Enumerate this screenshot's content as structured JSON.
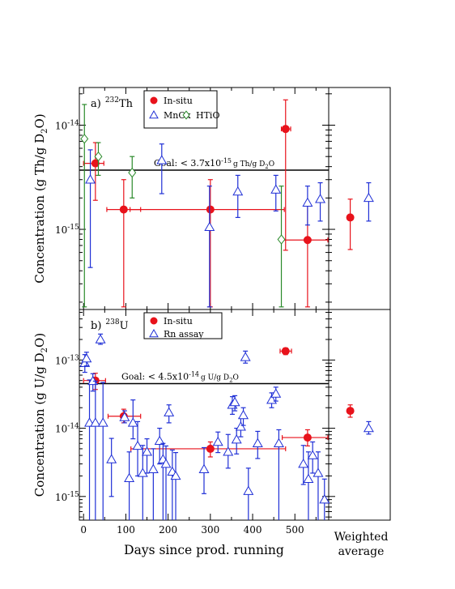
{
  "chart_data": [
    {
      "type": "scatter",
      "panel_label": "a)",
      "isotope_mass": "232",
      "isotope_symbol": "Th",
      "ylabel_parts": [
        "Concentration (g Th/g D",
        "2",
        "O)"
      ],
      "yscale": "log",
      "ylim": [
        1.7e-16,
        2.3e-14
      ],
      "xlim": [
        -10,
        580
      ],
      "ytick_labels": [
        {
          "value": 1e-14,
          "mant": "10",
          "exp": "-14"
        },
        {
          "value": 1e-15,
          "mant": "10",
          "exp": "-15"
        }
      ],
      "goal": {
        "value": 3.7e-15,
        "text_prefix": "Goal: < 3.7x10",
        "text_exp": "-15",
        "text_unit_parts": [
          "g Th/g D",
          "2",
          "O"
        ]
      },
      "legend": [
        {
          "label": "In-situ",
          "marker": "circle",
          "color": "#e8121b"
        },
        {
          "label": "MnOx",
          "marker": "triangle",
          "color": "#1f2fd6"
        },
        {
          "label": "HTiO",
          "marker": "diamond",
          "color": "#2a8a2a"
        }
      ],
      "series": [
        {
          "name": "In-situ",
          "marker": "circle",
          "color": "#e8121b",
          "points": [
            {
              "x": 28,
              "y": 4.3e-15,
              "ylo": 1.9e-15,
              "yhi": 6.8e-15,
              "xlo": 0,
              "xhi": 48
            },
            {
              "x": 95,
              "y": 1.55e-15,
              "ylo": 1.8e-16,
              "yhi": 3e-15,
              "xlo": 55,
              "xhi": 135
            },
            {
              "x": 300,
              "y": 1.55e-15,
              "ylo": 1.8e-16,
              "yhi": 3e-15,
              "xlo": 110,
              "xhi": 475
            },
            {
              "x": 478,
              "y": 9.2e-15,
              "ylo": 6.3e-16,
              "yhi": 1.75e-14,
              "xlo": 468,
              "xhi": 490
            },
            {
              "x": 530,
              "y": 7.9e-16,
              "ylo": 1.8e-16,
              "yhi": 1.75e-15,
              "xlo": 470,
              "xhi": 578
            }
          ]
        },
        {
          "name": "MnOx",
          "marker": "triangle",
          "color": "#1f2fd6",
          "points": [
            {
              "x": 16,
              "y": 3e-15,
              "ylo": 4.3e-16,
              "yhi": 5.8e-15
            },
            {
              "x": 185,
              "y": 4.6e-15,
              "ylo": 2.2e-15,
              "yhi": 6.6e-15
            },
            {
              "x": 298,
              "y": 1.05e-15,
              "ylo": 1.8e-16,
              "yhi": 2.6e-15
            },
            {
              "x": 365,
              "y": 2.3e-15,
              "ylo": 1.3e-15,
              "yhi": 3.3e-15
            },
            {
              "x": 455,
              "y": 2.4e-15,
              "ylo": 1.5e-15,
              "yhi": 3.3e-15
            },
            {
              "x": 530,
              "y": 1.8e-15,
              "ylo": 1.1e-15,
              "yhi": 2.6e-15
            },
            {
              "x": 560,
              "y": 1.95e-15,
              "ylo": 1.2e-15,
              "yhi": 2.8e-15
            }
          ]
        },
        {
          "name": "HTiO",
          "marker": "diamond",
          "color": "#2a8a2a",
          "points": [
            {
              "x": 2,
              "y": 7.4e-15,
              "ylo": 1.8e-16,
              "yhi": 1.58e-14
            },
            {
              "x": 35,
              "y": 5e-15,
              "ylo": 3.3e-15,
              "yhi": 6.8e-15
            },
            {
              "x": 115,
              "y": 3.5e-15,
              "ylo": 2e-15,
              "yhi": 5e-15
            },
            {
              "x": 468,
              "y": 8e-16,
              "ylo": 1.8e-16,
              "yhi": 2.6e-15
            }
          ]
        }
      ],
      "weighted_average": [
        {
          "series": "In-situ",
          "y": 1.3e-15,
          "ylo": 6.4e-16,
          "yhi": 1.95e-15
        },
        {
          "series": "MnOx",
          "y": 2e-15,
          "ylo": 1.2e-15,
          "yhi": 2.8e-15
        }
      ]
    },
    {
      "type": "scatter",
      "panel_label": "b)",
      "isotope_mass": "238",
      "isotope_symbol": "U",
      "ylabel_parts": [
        "Concentration (g U/g D",
        "2",
        "O)"
      ],
      "yscale": "log",
      "ylim": [
        4.5e-16,
        5.5e-13
      ],
      "xlim": [
        -10,
        580
      ],
      "ytick_labels": [
        {
          "value": 1e-13,
          "mant": "10",
          "exp": "-13"
        },
        {
          "value": 1e-14,
          "mant": "10",
          "exp": "-14"
        },
        {
          "value": 1e-15,
          "mant": "10",
          "exp": "-15"
        }
      ],
      "xticks": [
        0,
        100,
        200,
        300,
        400,
        500
      ],
      "xlabel": "Days since prod. running",
      "goal": {
        "value": 4.5e-14,
        "text_prefix": "Goal: < 4.5x10",
        "text_exp": "-14",
        "text_unit_parts": [
          "g U/g D",
          "2",
          "O"
        ]
      },
      "legend": [
        {
          "label": "In-situ",
          "marker": "circle",
          "color": "#e8121b"
        },
        {
          "label": "Rn assay",
          "marker": "triangle",
          "color": "#1f2fd6"
        }
      ],
      "series": [
        {
          "name": "In-situ",
          "marker": "circle",
          "color": "#e8121b",
          "points": [
            {
              "x": 28,
              "y": 5e-14,
              "ylo": 3.7e-14,
              "yhi": 6.4e-14,
              "xlo": 0,
              "xhi": 52
            },
            {
              "x": 95,
              "y": 1.5e-14,
              "ylo": 1.2e-14,
              "yhi": 1.9e-14,
              "xlo": 58,
              "xhi": 135
            },
            {
              "x": 300,
              "y": 5e-15,
              "ylo": 3.8e-15,
              "yhi": 6.3e-15,
              "xlo": 112,
              "xhi": 478
            },
            {
              "x": 478,
              "y": 1.35e-13,
              "ylo": 1.2e-13,
              "yhi": 1.5e-13,
              "xlo": 465,
              "xhi": 492
            },
            {
              "x": 530,
              "y": 7.3e-15,
              "ylo": 5.5e-15,
              "yhi": 9.5e-15,
              "xlo": 470,
              "xhi": 578
            }
          ]
        },
        {
          "name": "Rn assay",
          "marker": "triangle",
          "color": "#1f2fd6",
          "points": [
            {
              "x": 3,
              "y": 9e-14,
              "ylo": 6.6e-14,
              "yhi": 1.2e-13
            },
            {
              "x": 7,
              "y": 1.05e-13,
              "ylo": 8.2e-14,
              "yhi": 1.3e-13
            },
            {
              "x": 14,
              "y": 1.2e-14,
              "ylo": 4.5e-16,
              "yhi": 5.1e-14
            },
            {
              "x": 22,
              "y": 4.9e-14,
              "ylo": 3.5e-14,
              "yhi": 6.3e-14
            },
            {
              "x": 28,
              "y": 1.2e-14,
              "ylo": 4.5e-16,
              "yhi": 4.9e-14
            },
            {
              "x": 40,
              "y": 2e-13,
              "ylo": 1.7e-13,
              "yhi": 2.4e-13
            },
            {
              "x": 46,
              "y": 1.2e-14,
              "ylo": 4.5e-16,
              "yhi": 4.7e-14
            },
            {
              "x": 66,
              "y": 3.5e-15,
              "ylo": 1e-15,
              "yhi": 7.1e-15
            },
            {
              "x": 97,
              "y": 1.45e-14,
              "ylo": 1.2e-14,
              "yhi": 1.8e-14
            },
            {
              "x": 108,
              "y": 1.85e-15,
              "ylo": 4.5e-16,
              "yhi": 4.5e-15
            },
            {
              "x": 117,
              "y": 1.2e-14,
              "ylo": 7e-15,
              "yhi": 2.6e-14
            },
            {
              "x": 128,
              "y": 5.5e-15,
              "ylo": 2e-15,
              "yhi": 1.25e-14
            },
            {
              "x": 140,
              "y": 2.2e-15,
              "ylo": 4.5e-16,
              "yhi": 5.6e-15
            },
            {
              "x": 150,
              "y": 4.5e-15,
              "ylo": 2.2e-15,
              "yhi": 7e-15
            },
            {
              "x": 165,
              "y": 2.5e-15,
              "ylo": 4.5e-16,
              "yhi": 5e-15
            },
            {
              "x": 180,
              "y": 6.5e-15,
              "ylo": 3e-15,
              "yhi": 1e-14
            },
            {
              "x": 188,
              "y": 3.5e-15,
              "ylo": 4.5e-16,
              "yhi": 6e-15
            },
            {
              "x": 195,
              "y": 3e-15,
              "ylo": 4.5e-16,
              "yhi": 5.5e-15
            },
            {
              "x": 202,
              "y": 1.7e-14,
              "ylo": 1.2e-14,
              "yhi": 2.2e-14
            },
            {
              "x": 210,
              "y": 2.3e-15,
              "ylo": 4.5e-16,
              "yhi": 4.8e-15
            },
            {
              "x": 218,
              "y": 2e-15,
              "ylo": 4.5e-16,
              "yhi": 4.4e-15
            },
            {
              "x": 285,
              "y": 2.5e-15,
              "ylo": 1.1e-15,
              "yhi": 5.2e-15
            },
            {
              "x": 318,
              "y": 6.3e-15,
              "ylo": 4.4e-15,
              "yhi": 8.8e-15
            },
            {
              "x": 342,
              "y": 4.5e-15,
              "ylo": 2.6e-15,
              "yhi": 8.1e-15
            },
            {
              "x": 352,
              "y": 2.2e-14,
              "ylo": 1.6e-14,
              "yhi": 2.9e-14
            },
            {
              "x": 358,
              "y": 2.4e-14,
              "ylo": 1.8e-14,
              "yhi": 3e-14
            },
            {
              "x": 362,
              "y": 6.8e-15,
              "ylo": 4.2e-15,
              "yhi": 1e-14
            },
            {
              "x": 372,
              "y": 1.05e-14,
              "ylo": 7.5e-15,
              "yhi": 1.4e-14
            },
            {
              "x": 378,
              "y": 1.55e-14,
              "ylo": 1.1e-14,
              "yhi": 2e-14
            },
            {
              "x": 383,
              "y": 1.1e-13,
              "ylo": 9e-14,
              "yhi": 1.35e-13
            },
            {
              "x": 390,
              "y": 1.2e-15,
              "ylo": 4.5e-16,
              "yhi": 2.6e-15
            },
            {
              "x": 412,
              "y": 6e-15,
              "ylo": 3.6e-15,
              "yhi": 9e-15
            },
            {
              "x": 445,
              "y": 2.6e-14,
              "ylo": 2e-14,
              "yhi": 3.3e-14
            },
            {
              "x": 455,
              "y": 3.2e-14,
              "ylo": 2.5e-14,
              "yhi": 4e-14
            },
            {
              "x": 462,
              "y": 6e-15,
              "ylo": 4.5e-16,
              "yhi": 9.5e-15
            },
            {
              "x": 520,
              "y": 3e-15,
              "ylo": 1.5e-15,
              "yhi": 5.6e-15
            },
            {
              "x": 532,
              "y": 1.8e-15,
              "ylo": 4.5e-16,
              "yhi": 4.5e-15
            },
            {
              "x": 542,
              "y": 4e-15,
              "ylo": 2.2e-15,
              "yhi": 6.3e-15
            },
            {
              "x": 555,
              "y": 2.2e-15,
              "ylo": 4.5e-16,
              "yhi": 4.5e-15
            },
            {
              "x": 570,
              "y": 9e-16,
              "ylo": 4.5e-16,
              "yhi": 1.8e-15
            }
          ]
        }
      ],
      "weighted_average": [
        {
          "series": "In-situ",
          "y": 1.8e-14,
          "ylo": 1.45e-14,
          "yhi": 2.2e-14
        },
        {
          "series": "Rn assay",
          "y": 1e-14,
          "ylo": 8.2e-15,
          "yhi": 1.25e-14
        }
      ]
    }
  ],
  "weighted_label_lines": [
    "Weighted",
    "average"
  ]
}
